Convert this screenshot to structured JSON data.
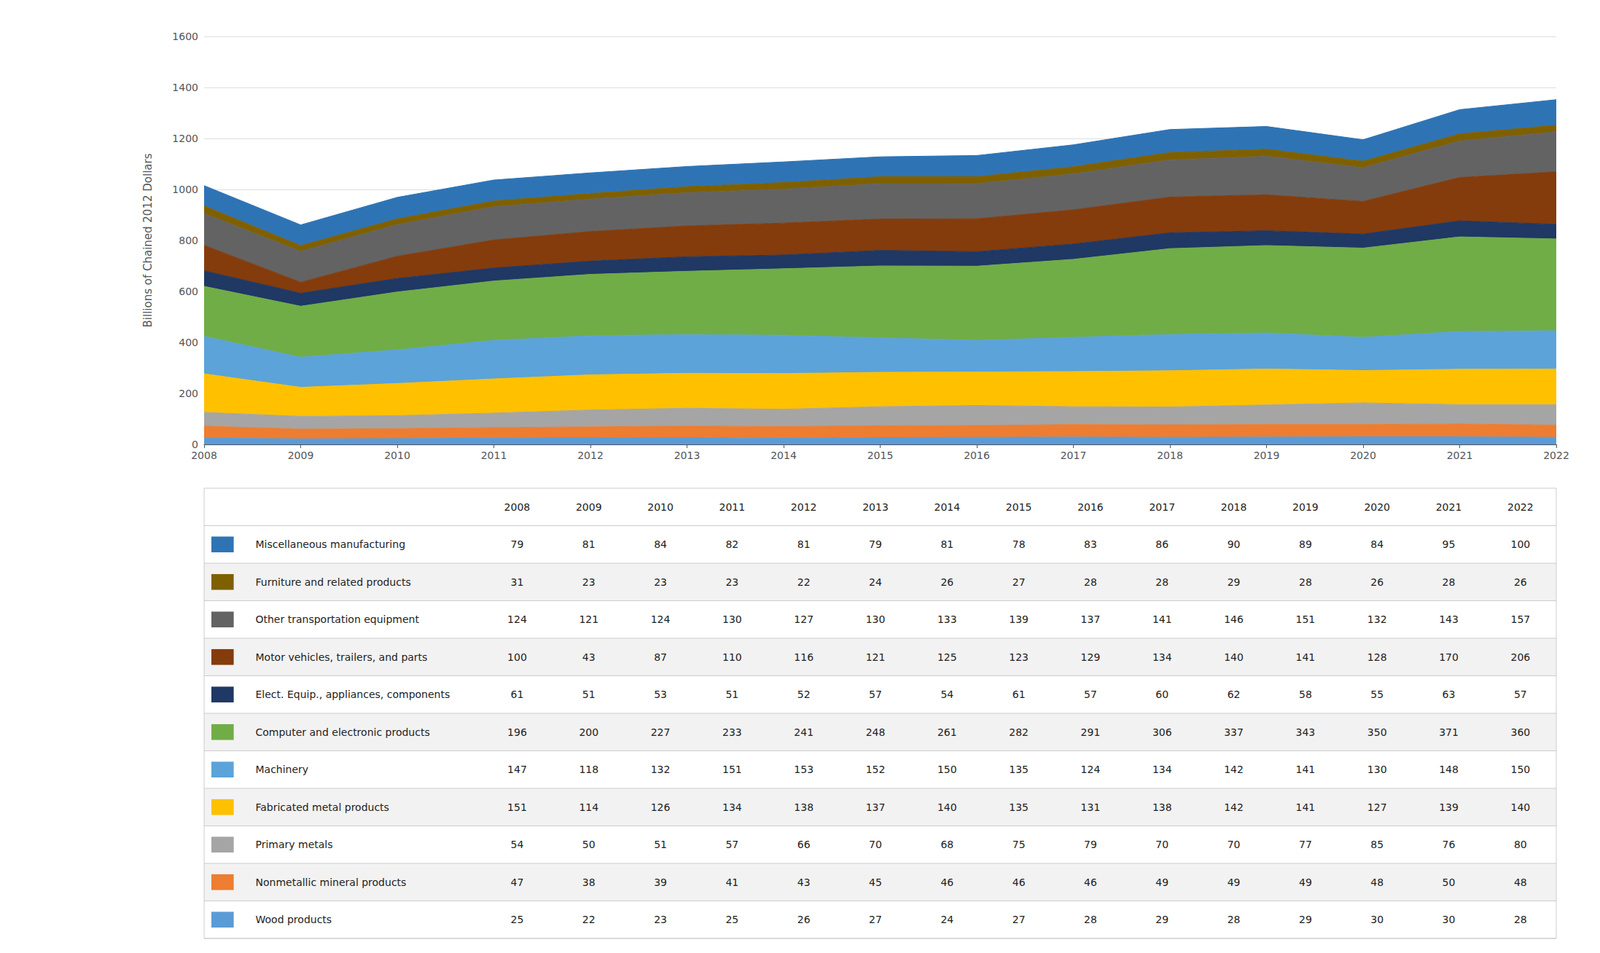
{
  "chart_data": {
    "type": "area",
    "stacked": true,
    "ylabel": "Billions of Chained 2012 Dollars",
    "categories": [
      "2008",
      "2009",
      "2010",
      "2011",
      "2012",
      "2013",
      "2014",
      "2015",
      "2016",
      "2017",
      "2018",
      "2019",
      "2020",
      "2021",
      "2022"
    ],
    "series": [
      {
        "name": "Wood products",
        "color": "#5B9BD5",
        "values": [
          25,
          22,
          23,
          25,
          26,
          27,
          24,
          27,
          28,
          29,
          28,
          29,
          30,
          30,
          28
        ]
      },
      {
        "name": "Nonmetallic mineral products",
        "color": "#ED7D31",
        "values": [
          47,
          38,
          39,
          41,
          43,
          45,
          46,
          46,
          46,
          49,
          49,
          49,
          48,
          50,
          48
        ]
      },
      {
        "name": "Primary metals",
        "color": "#A5A5A5",
        "values": [
          54,
          50,
          51,
          57,
          66,
          70,
          68,
          75,
          79,
          70,
          70,
          77,
          85,
          76,
          80
        ]
      },
      {
        "name": "Fabricated metal products",
        "color": "#FFC000",
        "values": [
          151,
          114,
          126,
          134,
          138,
          137,
          140,
          135,
          131,
          138,
          142,
          141,
          127,
          139,
          140
        ]
      },
      {
        "name": "Machinery",
        "color": "#5BA3D9",
        "values": [
          147,
          118,
          132,
          151,
          153,
          152,
          150,
          135,
          124,
          134,
          142,
          141,
          130,
          148,
          150
        ]
      },
      {
        "name": "Computer and electronic products",
        "color": "#70AD47",
        "values": [
          196,
          200,
          227,
          233,
          241,
          248,
          261,
          282,
          291,
          306,
          337,
          343,
          350,
          371,
          360
        ]
      },
      {
        "name": "Elect. Equip., appliances, components",
        "color": "#1F3864",
        "values": [
          61,
          51,
          53,
          51,
          52,
          57,
          54,
          61,
          57,
          60,
          62,
          58,
          55,
          63,
          57
        ]
      },
      {
        "name": "Motor vehicles, trailers, and parts",
        "color": "#843C0C",
        "values": [
          100,
          43,
          87,
          110,
          116,
          121,
          125,
          123,
          129,
          134,
          140,
          141,
          128,
          170,
          206
        ]
      },
      {
        "name": "Other transportation equipment",
        "color": "#636363",
        "values": [
          124,
          121,
          124,
          130,
          127,
          130,
          133,
          139,
          137,
          141,
          146,
          151,
          132,
          143,
          157
        ]
      },
      {
        "name": "Furniture and related products",
        "color": "#7F6000",
        "values": [
          31,
          23,
          23,
          23,
          22,
          24,
          26,
          27,
          28,
          28,
          29,
          28,
          26,
          28,
          26
        ]
      },
      {
        "name": "Miscellaneous manufacturing",
        "color": "#2E74B5",
        "values": [
          79,
          81,
          84,
          82,
          81,
          79,
          81,
          78,
          83,
          86,
          90,
          89,
          84,
          95,
          100
        ]
      }
    ],
    "ylim": [
      0,
      1600
    ],
    "yticks": [
      0,
      200,
      400,
      600,
      800,
      1000,
      1200,
      1400,
      1600
    ],
    "grid": true,
    "legend": "bottom"
  }
}
